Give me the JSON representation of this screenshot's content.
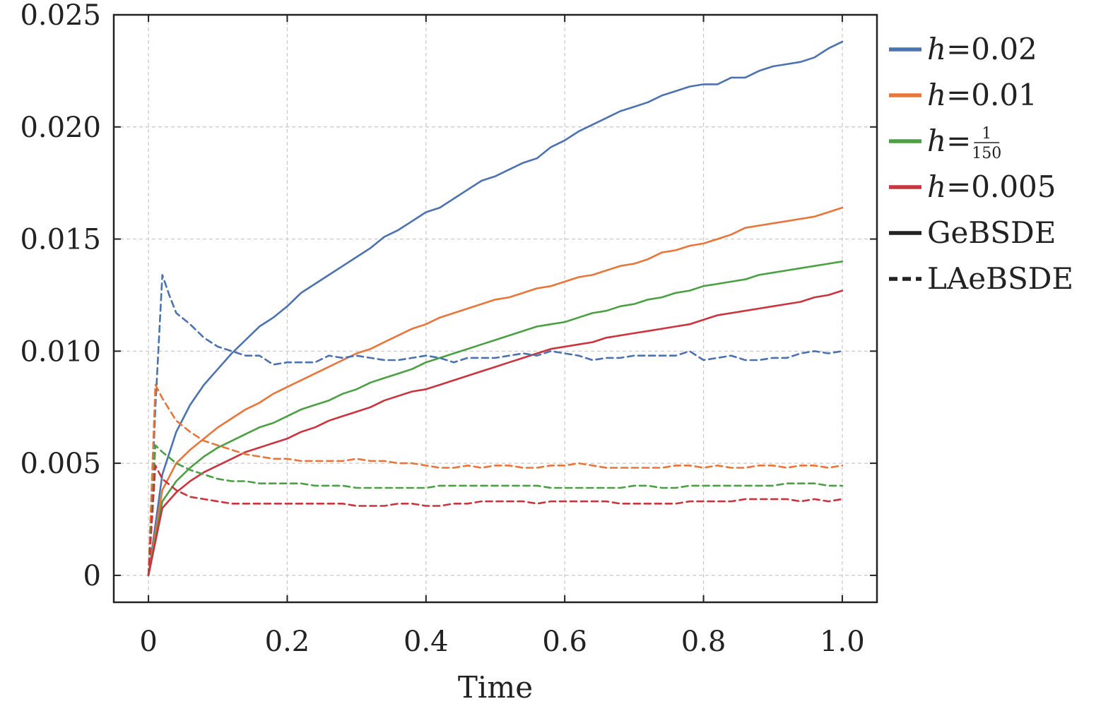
{
  "chart_data": {
    "type": "line",
    "xlabel": "Time",
    "ylabel": "",
    "xlim": [
      -0.05,
      1.05
    ],
    "ylim": [
      -0.0012,
      0.025
    ],
    "xticks": [
      0,
      0.2,
      0.4,
      0.6,
      0.8,
      1.0
    ],
    "xtick_labels": [
      "0",
      "0.2",
      "0.4",
      "0.6",
      "0.8",
      "1.0"
    ],
    "yticks": [
      0,
      0.005,
      0.01,
      0.015,
      0.02,
      0.025
    ],
    "ytick_labels": [
      "0",
      "0.005",
      "0.010",
      "0.015",
      "0.020",
      "0.025"
    ],
    "grid": true,
    "legend_position": "outside-right",
    "legend": [
      {
        "key": "h002",
        "prefix": "h",
        "text": "=0.02",
        "color": "#4c72b0",
        "style": "solid"
      },
      {
        "key": "h001",
        "prefix": "h",
        "text": "=0.01",
        "color": "#e8763a",
        "style": "solid"
      },
      {
        "key": "h150",
        "prefix": "h",
        "text": "=",
        "frac_num": "1",
        "frac_den": "150",
        "color": "#4aa043",
        "style": "solid"
      },
      {
        "key": "h0005",
        "prefix": "h",
        "text": "=0.005",
        "color": "#c9343f",
        "style": "solid"
      },
      {
        "key": "gebsde",
        "prefix": "",
        "text": "GeBSDE",
        "color": "#222222",
        "style": "solid"
      },
      {
        "key": "laebsde",
        "prefix": "",
        "text": "LAeBSDE",
        "color": "#222222",
        "style": "dashed"
      }
    ],
    "series": [
      {
        "h": "0.02",
        "method": "GeBSDE",
        "color": "#4c72b0",
        "style": "solid",
        "x": [
          0,
          0.02,
          0.04,
          0.06,
          0.08,
          0.1,
          0.12,
          0.14,
          0.16,
          0.18,
          0.2,
          0.22,
          0.24,
          0.26,
          0.28,
          0.3,
          0.32,
          0.34,
          0.36,
          0.38,
          0.4,
          0.42,
          0.44,
          0.46,
          0.48,
          0.5,
          0.52,
          0.54,
          0.56,
          0.58,
          0.6,
          0.62,
          0.64,
          0.66,
          0.68,
          0.7,
          0.72,
          0.74,
          0.76,
          0.78,
          0.8,
          0.82,
          0.84,
          0.86,
          0.88,
          0.9,
          0.92,
          0.94,
          0.96,
          0.98,
          1.0
        ],
        "y": [
          0,
          0.0045,
          0.0064,
          0.0076,
          0.0085,
          0.0092,
          0.0099,
          0.0105,
          0.0111,
          0.0115,
          0.012,
          0.0126,
          0.013,
          0.0134,
          0.0138,
          0.0142,
          0.0146,
          0.0151,
          0.0154,
          0.0158,
          0.0162,
          0.0164,
          0.0168,
          0.0172,
          0.0176,
          0.0178,
          0.0181,
          0.0184,
          0.0186,
          0.0191,
          0.0194,
          0.0198,
          0.0201,
          0.0204,
          0.0207,
          0.0209,
          0.0211,
          0.0214,
          0.0216,
          0.0218,
          0.0219,
          0.0219,
          0.0222,
          0.0222,
          0.0225,
          0.0227,
          0.0228,
          0.0229,
          0.0231,
          0.0235,
          0.0238
        ]
      },
      {
        "h": "0.01",
        "method": "GeBSDE",
        "color": "#e8763a",
        "style": "solid",
        "x": [
          0,
          0.02,
          0.04,
          0.06,
          0.08,
          0.1,
          0.12,
          0.14,
          0.16,
          0.18,
          0.2,
          0.22,
          0.24,
          0.26,
          0.28,
          0.3,
          0.32,
          0.34,
          0.36,
          0.38,
          0.4,
          0.42,
          0.44,
          0.46,
          0.48,
          0.5,
          0.52,
          0.54,
          0.56,
          0.58,
          0.6,
          0.62,
          0.64,
          0.66,
          0.68,
          0.7,
          0.72,
          0.74,
          0.76,
          0.78,
          0.8,
          0.82,
          0.84,
          0.86,
          0.88,
          0.9,
          0.92,
          0.94,
          0.96,
          0.98,
          1.0
        ],
        "y": [
          0,
          0.0038,
          0.005,
          0.0056,
          0.0061,
          0.0066,
          0.007,
          0.0074,
          0.0077,
          0.0081,
          0.0084,
          0.0087,
          0.009,
          0.0093,
          0.0096,
          0.0099,
          0.0101,
          0.0104,
          0.0107,
          0.011,
          0.0112,
          0.0115,
          0.0117,
          0.0119,
          0.0121,
          0.0123,
          0.0124,
          0.0126,
          0.0128,
          0.0129,
          0.0131,
          0.0133,
          0.0134,
          0.0136,
          0.0138,
          0.0139,
          0.0141,
          0.0144,
          0.0145,
          0.0147,
          0.0148,
          0.015,
          0.0152,
          0.0155,
          0.0156,
          0.0157,
          0.0158,
          0.0159,
          0.016,
          0.0162,
          0.0164
        ]
      },
      {
        "h": "1/150",
        "method": "GeBSDE",
        "color": "#4aa043",
        "style": "solid",
        "x": [
          0,
          0.02,
          0.04,
          0.06,
          0.08,
          0.1,
          0.12,
          0.14,
          0.16,
          0.18,
          0.2,
          0.22,
          0.24,
          0.26,
          0.28,
          0.3,
          0.32,
          0.34,
          0.36,
          0.38,
          0.4,
          0.42,
          0.44,
          0.46,
          0.48,
          0.5,
          0.52,
          0.54,
          0.56,
          0.58,
          0.6,
          0.62,
          0.64,
          0.66,
          0.68,
          0.7,
          0.72,
          0.74,
          0.76,
          0.78,
          0.8,
          0.82,
          0.84,
          0.86,
          0.88,
          0.9,
          0.92,
          0.94,
          0.96,
          0.98,
          1.0
        ],
        "y": [
          0,
          0.0033,
          0.0042,
          0.0048,
          0.0053,
          0.0057,
          0.006,
          0.0063,
          0.0066,
          0.0068,
          0.0071,
          0.0074,
          0.0076,
          0.0078,
          0.0081,
          0.0083,
          0.0086,
          0.0088,
          0.009,
          0.0092,
          0.0095,
          0.0097,
          0.0099,
          0.0101,
          0.0103,
          0.0105,
          0.0107,
          0.0109,
          0.0111,
          0.0112,
          0.0113,
          0.0115,
          0.0117,
          0.0118,
          0.012,
          0.0121,
          0.0123,
          0.0124,
          0.0126,
          0.0127,
          0.0129,
          0.013,
          0.0131,
          0.0132,
          0.0134,
          0.0135,
          0.0136,
          0.0137,
          0.0138,
          0.0139,
          0.014
        ]
      },
      {
        "h": "0.005",
        "method": "GeBSDE",
        "color": "#c9343f",
        "style": "solid",
        "x": [
          0,
          0.02,
          0.04,
          0.06,
          0.08,
          0.1,
          0.12,
          0.14,
          0.16,
          0.18,
          0.2,
          0.22,
          0.24,
          0.26,
          0.28,
          0.3,
          0.32,
          0.34,
          0.36,
          0.38,
          0.4,
          0.42,
          0.44,
          0.46,
          0.48,
          0.5,
          0.52,
          0.54,
          0.56,
          0.58,
          0.6,
          0.62,
          0.64,
          0.66,
          0.68,
          0.7,
          0.72,
          0.74,
          0.76,
          0.78,
          0.8,
          0.82,
          0.84,
          0.86,
          0.88,
          0.9,
          0.92,
          0.94,
          0.96,
          0.98,
          1.0
        ],
        "y": [
          0,
          0.003,
          0.0037,
          0.0042,
          0.0046,
          0.0049,
          0.0052,
          0.0055,
          0.0057,
          0.0059,
          0.0061,
          0.0064,
          0.0066,
          0.0069,
          0.0071,
          0.0073,
          0.0075,
          0.0078,
          0.008,
          0.0082,
          0.0083,
          0.0085,
          0.0087,
          0.0089,
          0.0091,
          0.0093,
          0.0095,
          0.0097,
          0.0099,
          0.0101,
          0.0102,
          0.0103,
          0.0104,
          0.0106,
          0.0107,
          0.0108,
          0.0109,
          0.011,
          0.0111,
          0.0112,
          0.0114,
          0.0116,
          0.0117,
          0.0118,
          0.0119,
          0.012,
          0.0121,
          0.0122,
          0.0124,
          0.0125,
          0.0127
        ]
      },
      {
        "h": "0.02",
        "method": "LAeBSDE",
        "color": "#4c72b0",
        "style": "dashed",
        "x": [
          0,
          0.01,
          0.02,
          0.03,
          0.04,
          0.06,
          0.08,
          0.1,
          0.12,
          0.14,
          0.16,
          0.18,
          0.2,
          0.22,
          0.24,
          0.26,
          0.28,
          0.3,
          0.32,
          0.34,
          0.36,
          0.38,
          0.4,
          0.42,
          0.44,
          0.46,
          0.48,
          0.5,
          0.52,
          0.54,
          0.56,
          0.58,
          0.6,
          0.62,
          0.64,
          0.66,
          0.68,
          0.7,
          0.72,
          0.74,
          0.76,
          0.78,
          0.8,
          0.82,
          0.84,
          0.86,
          0.88,
          0.9,
          0.92,
          0.94,
          0.96,
          0.98,
          1.0
        ],
        "y": [
          0,
          0.0075,
          0.0134,
          0.0125,
          0.0117,
          0.0112,
          0.0106,
          0.0102,
          0.01,
          0.0098,
          0.0098,
          0.0094,
          0.0095,
          0.0095,
          0.0095,
          0.0098,
          0.0097,
          0.0098,
          0.0097,
          0.0096,
          0.0096,
          0.0097,
          0.0098,
          0.0097,
          0.0095,
          0.0097,
          0.0097,
          0.0097,
          0.0098,
          0.0099,
          0.0098,
          0.01,
          0.0099,
          0.0098,
          0.0096,
          0.0097,
          0.0097,
          0.0098,
          0.0098,
          0.0098,
          0.0098,
          0.01,
          0.0096,
          0.0097,
          0.0098,
          0.0096,
          0.0096,
          0.0097,
          0.0097,
          0.0099,
          0.01,
          0.0099,
          0.01
        ]
      },
      {
        "h": "0.01",
        "method": "LAeBSDE",
        "color": "#e8763a",
        "style": "dashed",
        "x": [
          0,
          0.01,
          0.02,
          0.04,
          0.06,
          0.08,
          0.1,
          0.12,
          0.14,
          0.16,
          0.18,
          0.2,
          0.22,
          0.24,
          0.26,
          0.28,
          0.3,
          0.32,
          0.34,
          0.36,
          0.38,
          0.4,
          0.42,
          0.44,
          0.46,
          0.48,
          0.5,
          0.52,
          0.54,
          0.56,
          0.58,
          0.6,
          0.62,
          0.64,
          0.66,
          0.68,
          0.7,
          0.72,
          0.74,
          0.76,
          0.78,
          0.8,
          0.82,
          0.84,
          0.86,
          0.88,
          0.9,
          0.92,
          0.94,
          0.96,
          0.98,
          1.0
        ],
        "y": [
          0,
          0.0085,
          0.0079,
          0.0069,
          0.0064,
          0.006,
          0.0058,
          0.0056,
          0.0054,
          0.0053,
          0.0052,
          0.0052,
          0.0051,
          0.0051,
          0.0051,
          0.0051,
          0.0052,
          0.0051,
          0.0051,
          0.005,
          0.005,
          0.0049,
          0.0048,
          0.0048,
          0.0049,
          0.0048,
          0.0049,
          0.0049,
          0.0048,
          0.0048,
          0.0049,
          0.0049,
          0.005,
          0.0049,
          0.0048,
          0.0048,
          0.0048,
          0.0048,
          0.0048,
          0.0049,
          0.0049,
          0.0048,
          0.0049,
          0.0048,
          0.0048,
          0.0049,
          0.0049,
          0.0048,
          0.0049,
          0.0049,
          0.0048,
          0.0049
        ]
      },
      {
        "h": "1/150",
        "method": "LAeBSDE",
        "color": "#4aa043",
        "style": "dashed",
        "x": [
          0,
          0.01,
          0.02,
          0.04,
          0.06,
          0.08,
          0.1,
          0.12,
          0.14,
          0.16,
          0.18,
          0.2,
          0.22,
          0.24,
          0.26,
          0.28,
          0.3,
          0.32,
          0.34,
          0.36,
          0.38,
          0.4,
          0.42,
          0.44,
          0.46,
          0.48,
          0.5,
          0.52,
          0.54,
          0.56,
          0.58,
          0.6,
          0.62,
          0.64,
          0.66,
          0.68,
          0.7,
          0.72,
          0.74,
          0.76,
          0.78,
          0.8,
          0.82,
          0.84,
          0.86,
          0.88,
          0.9,
          0.92,
          0.94,
          0.96,
          0.98,
          1.0
        ],
        "y": [
          0,
          0.0058,
          0.0055,
          0.005,
          0.0047,
          0.0045,
          0.0043,
          0.0042,
          0.0042,
          0.0041,
          0.0041,
          0.0041,
          0.0041,
          0.004,
          0.004,
          0.004,
          0.0039,
          0.0039,
          0.0039,
          0.0039,
          0.0039,
          0.0039,
          0.004,
          0.004,
          0.004,
          0.004,
          0.004,
          0.004,
          0.004,
          0.004,
          0.0039,
          0.0039,
          0.0039,
          0.0039,
          0.0039,
          0.0039,
          0.004,
          0.004,
          0.0039,
          0.0039,
          0.004,
          0.004,
          0.004,
          0.004,
          0.004,
          0.004,
          0.004,
          0.0041,
          0.0041,
          0.0041,
          0.004,
          0.004
        ]
      },
      {
        "h": "0.005",
        "method": "LAeBSDE",
        "color": "#c9343f",
        "style": "dashed",
        "x": [
          0,
          0.01,
          0.02,
          0.04,
          0.06,
          0.08,
          0.1,
          0.12,
          0.14,
          0.16,
          0.18,
          0.2,
          0.22,
          0.24,
          0.26,
          0.28,
          0.3,
          0.32,
          0.34,
          0.36,
          0.38,
          0.4,
          0.42,
          0.44,
          0.46,
          0.48,
          0.5,
          0.52,
          0.54,
          0.56,
          0.58,
          0.6,
          0.62,
          0.64,
          0.66,
          0.68,
          0.7,
          0.72,
          0.74,
          0.76,
          0.78,
          0.8,
          0.82,
          0.84,
          0.86,
          0.88,
          0.9,
          0.92,
          0.94,
          0.96,
          0.98,
          1.0
        ],
        "y": [
          0,
          0.0049,
          0.0043,
          0.0038,
          0.0035,
          0.0034,
          0.0033,
          0.0032,
          0.0032,
          0.0032,
          0.0032,
          0.0032,
          0.0032,
          0.0032,
          0.0032,
          0.0032,
          0.0031,
          0.0031,
          0.0031,
          0.0032,
          0.0032,
          0.0031,
          0.0031,
          0.0032,
          0.0032,
          0.0033,
          0.0033,
          0.0033,
          0.0033,
          0.0032,
          0.0033,
          0.0033,
          0.0033,
          0.0033,
          0.0033,
          0.0032,
          0.0032,
          0.0032,
          0.0032,
          0.0032,
          0.0033,
          0.0033,
          0.0033,
          0.0033,
          0.0034,
          0.0034,
          0.0034,
          0.0034,
          0.0033,
          0.0034,
          0.0033,
          0.0034
        ]
      }
    ]
  }
}
